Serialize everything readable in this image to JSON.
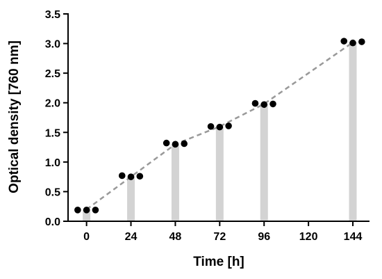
{
  "chart_data": {
    "type": "scatter",
    "title": "",
    "xlabel": "Time [h]",
    "ylabel": "Optical density [760 nm]",
    "xlim": [
      -10,
      153
    ],
    "ylim": [
      0,
      3.5
    ],
    "x_ticks": [
      0,
      24,
      48,
      72,
      96,
      120,
      144
    ],
    "y_ticks": [
      0.0,
      0.5,
      1.0,
      1.5,
      2.0,
      2.5,
      3.0,
      3.5
    ],
    "grid": false,
    "legend": "none",
    "series": [
      {
        "kind": "bar",
        "color": "#d3d3d3",
        "x": [
          0,
          24,
          48,
          72,
          96,
          144
        ],
        "values": [
          0.2,
          0.75,
          1.3,
          1.6,
          1.98,
          3.02
        ]
      },
      {
        "kind": "trend_line",
        "style": "dashed",
        "color": "#999999",
        "x": [
          0,
          24,
          48,
          72,
          96,
          144
        ],
        "values": [
          0.2,
          0.75,
          1.3,
          1.6,
          1.98,
          3.02
        ]
      },
      {
        "kind": "replicate_points",
        "color": "#000000",
        "points": [
          {
            "x": -4.8,
            "y": 0.19
          },
          {
            "x": 0,
            "y": 0.19
          },
          {
            "x": 4.8,
            "y": 0.19
          },
          {
            "x": 19.2,
            "y": 0.77
          },
          {
            "x": 24,
            "y": 0.75
          },
          {
            "x": 28.8,
            "y": 0.76
          },
          {
            "x": 43.2,
            "y": 1.32
          },
          {
            "x": 48,
            "y": 1.3
          },
          {
            "x": 52.8,
            "y": 1.31
          },
          {
            "x": 67.2,
            "y": 1.6
          },
          {
            "x": 72,
            "y": 1.59
          },
          {
            "x": 76.8,
            "y": 1.61
          },
          {
            "x": 91.2,
            "y": 1.99
          },
          {
            "x": 96,
            "y": 1.97
          },
          {
            "x": 100.8,
            "y": 1.98
          },
          {
            "x": 139.2,
            "y": 3.04
          },
          {
            "x": 144,
            "y": 3.01
          },
          {
            "x": 148.8,
            "y": 3.03
          }
        ]
      }
    ]
  }
}
